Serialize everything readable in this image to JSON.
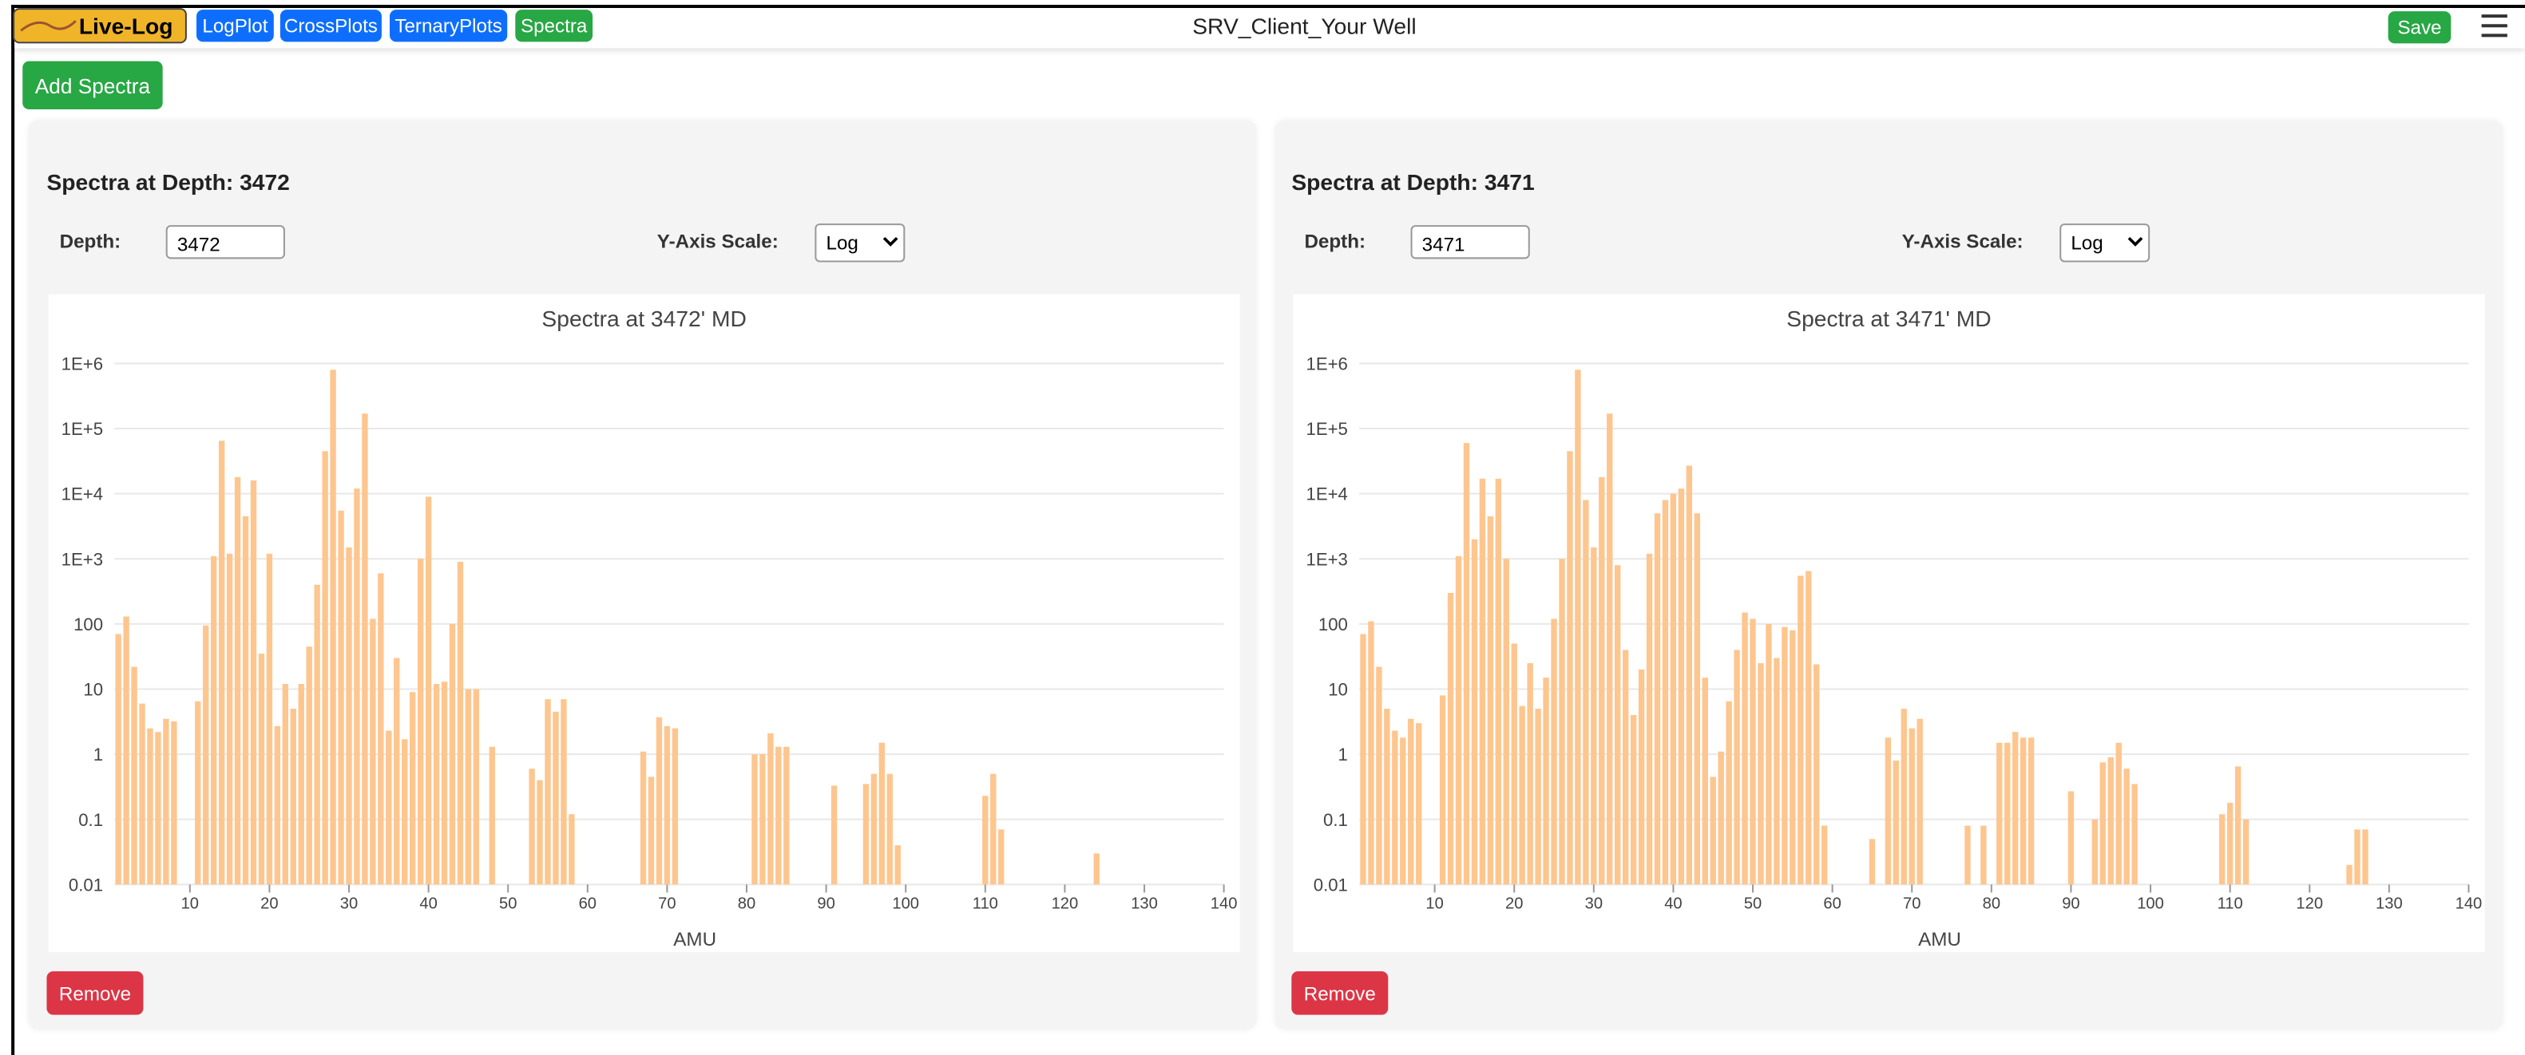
{
  "header": {
    "logo": "Live-Log",
    "nav": [
      "LogPlot",
      "CrossPlots",
      "TernaryPlots",
      "Spectra"
    ],
    "title": "SRV_Client_Your Well",
    "save": "Save"
  },
  "add_button": "Add Spectra",
  "panels": [
    {
      "heading": "Spectra at Depth: 3472",
      "depth_label": "Depth:",
      "depth": "3472",
      "scale_label": "Y-Axis Scale:",
      "scale": "Log",
      "remove": "Remove"
    },
    {
      "heading": "Spectra at Depth: 3471",
      "depth_label": "Depth:",
      "depth": "3471",
      "scale_label": "Y-Axis Scale:",
      "scale": "Log",
      "remove": "Remove"
    }
  ],
  "chart_data": [
    {
      "type": "bar",
      "title": "Spectra at 3472' MD",
      "xlabel": "AMU",
      "color": "#fdc68f",
      "log_y": true,
      "grid": true,
      "xlim": [
        0.5,
        140
      ],
      "xticks": [
        10,
        20,
        30,
        40,
        50,
        60,
        70,
        80,
        90,
        100,
        110,
        120,
        130,
        140
      ],
      "ylim": [
        0.01,
        1000000
      ],
      "yticks": [
        0.01,
        0.1,
        1,
        10,
        100,
        {
          "value": 1000,
          "label": "1E+3"
        },
        {
          "value": 10000,
          "label": "1E+4"
        },
        {
          "value": 100000,
          "label": "1E+5"
        },
        {
          "value": 1000000,
          "label": "1E+6"
        }
      ],
      "x": [
        1,
        2,
        3,
        4,
        5,
        6,
        7,
        8,
        11,
        12,
        13,
        14,
        15,
        16,
        17,
        18,
        19,
        20,
        21,
        22,
        23,
        24,
        25,
        26,
        27,
        28,
        29,
        30,
        31,
        32,
        33,
        34,
        35,
        36,
        37,
        38,
        39,
        40,
        41,
        42,
        43,
        44,
        45,
        46,
        48,
        53,
        54,
        55,
        56,
        57,
        58,
        67,
        68,
        69,
        70,
        71,
        81,
        82,
        83,
        84,
        85,
        91,
        95,
        96,
        97,
        98,
        99,
        110,
        111,
        112,
        124
      ],
      "values": [
        70,
        130,
        22,
        6,
        2.5,
        2.2,
        3.5,
        3.2,
        6.5,
        95,
        1100,
        65000,
        1200,
        18000,
        4500,
        16000,
        35,
        1200,
        2.7,
        12,
        5,
        12,
        45,
        400,
        45000,
        800000,
        5500,
        1500,
        12000,
        170000,
        120,
        600,
        2.3,
        30,
        1.7,
        9,
        1000,
        9000,
        12,
        13,
        100,
        900,
        10,
        10,
        1.3,
        0.6,
        0.4,
        7,
        4.5,
        7,
        0.12,
        1.1,
        0.45,
        3.7,
        2.7,
        2.5,
        1,
        1,
        2.1,
        1.3,
        1.3,
        0.33,
        0.35,
        0.5,
        1.5,
        0.5,
        0.04,
        0.23,
        0.5,
        0.07,
        0.03
      ]
    },
    {
      "type": "bar",
      "title": "Spectra at 3471' MD",
      "xlabel": "AMU",
      "color": "#fdc68f",
      "log_y": true,
      "grid": true,
      "xlim": [
        0.5,
        140
      ],
      "xticks": [
        10,
        20,
        30,
        40,
        50,
        60,
        70,
        80,
        90,
        100,
        110,
        120,
        130,
        140
      ],
      "ylim": [
        0.01,
        1000000
      ],
      "yticks": [
        0.01,
        0.1,
        1,
        10,
        100,
        {
          "value": 1000,
          "label": "1E+3"
        },
        {
          "value": 10000,
          "label": "1E+4"
        },
        {
          "value": 100000,
          "label": "1E+5"
        },
        {
          "value": 1000000,
          "label": "1E+6"
        }
      ],
      "x": [
        1,
        2,
        3,
        4,
        5,
        6,
        7,
        8,
        11,
        12,
        13,
        14,
        15,
        16,
        17,
        18,
        19,
        20,
        21,
        22,
        23,
        24,
        25,
        26,
        27,
        28,
        29,
        30,
        31,
        32,
        33,
        34,
        35,
        36,
        37,
        38,
        39,
        40,
        41,
        42,
        43,
        44,
        45,
        46,
        47,
        48,
        49,
        50,
        51,
        52,
        53,
        54,
        55,
        56,
        57,
        58,
        59,
        65,
        67,
        68,
        69,
        70,
        71,
        77,
        79,
        81,
        82,
        83,
        84,
        85,
        90,
        93,
        94,
        95,
        96,
        97,
        98,
        109,
        110,
        111,
        112,
        125,
        126,
        127
      ],
      "values": [
        70,
        110,
        22,
        5,
        2.3,
        1.8,
        3.5,
        3,
        8,
        300,
        1100,
        60000,
        2000,
        17000,
        4500,
        17000,
        1000,
        50,
        5.5,
        25,
        5,
        15,
        120,
        1000,
        45000,
        800000,
        8000,
        1500,
        18000,
        170000,
        800,
        40,
        4,
        20,
        1200,
        5000,
        8000,
        10000,
        12000,
        27000,
        5000,
        15,
        0.45,
        1.1,
        6.5,
        40,
        150,
        120,
        25,
        100,
        30,
        90,
        80,
        550,
        650,
        24,
        0.08,
        0.05,
        1.8,
        0.8,
        5,
        2.5,
        3.5,
        0.08,
        0.08,
        1.5,
        1.5,
        2.2,
        1.8,
        1.8,
        0.27,
        0.1,
        0.75,
        0.9,
        1.5,
        0.6,
        0.35,
        0.12,
        0.18,
        0.65,
        0.1,
        0.02,
        0.07,
        0.07
      ]
    }
  ]
}
